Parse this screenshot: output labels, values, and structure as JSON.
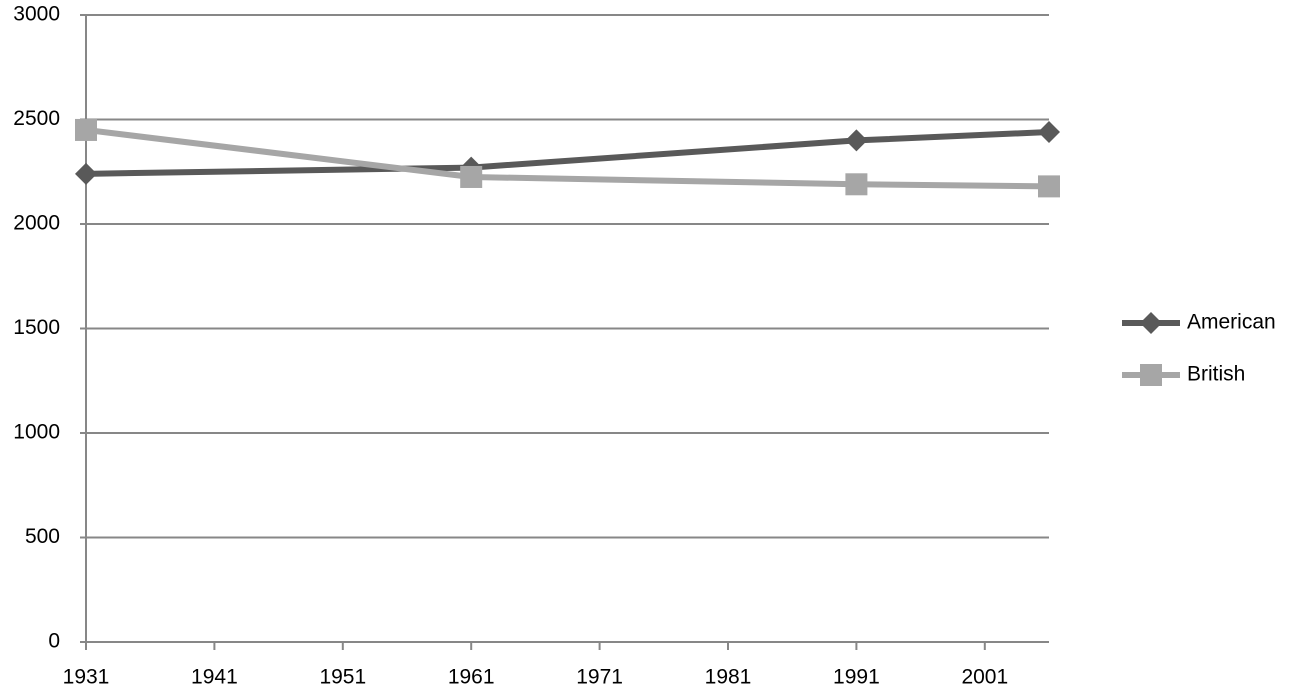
{
  "chart_data": {
    "type": "line",
    "x": [
      1931,
      1961,
      1991,
      2006
    ],
    "series": [
      {
        "name": "American",
        "color": "#595959",
        "marker": "diamond",
        "values": [
          2240,
          2270,
          2400,
          2440
        ]
      },
      {
        "name": "British",
        "color": "#a6a6a6",
        "marker": "square",
        "values": [
          2450,
          2225,
          2190,
          2180
        ]
      }
    ],
    "xlim": [
      1931,
      2006
    ],
    "xticks": [
      1931,
      1941,
      1951,
      1961,
      1971,
      1981,
      1991,
      2001
    ],
    "ylim": [
      0,
      3000
    ],
    "yticks": [
      0,
      500,
      1000,
      1500,
      2000,
      2500,
      3000
    ],
    "grid": true,
    "legend": "right"
  }
}
